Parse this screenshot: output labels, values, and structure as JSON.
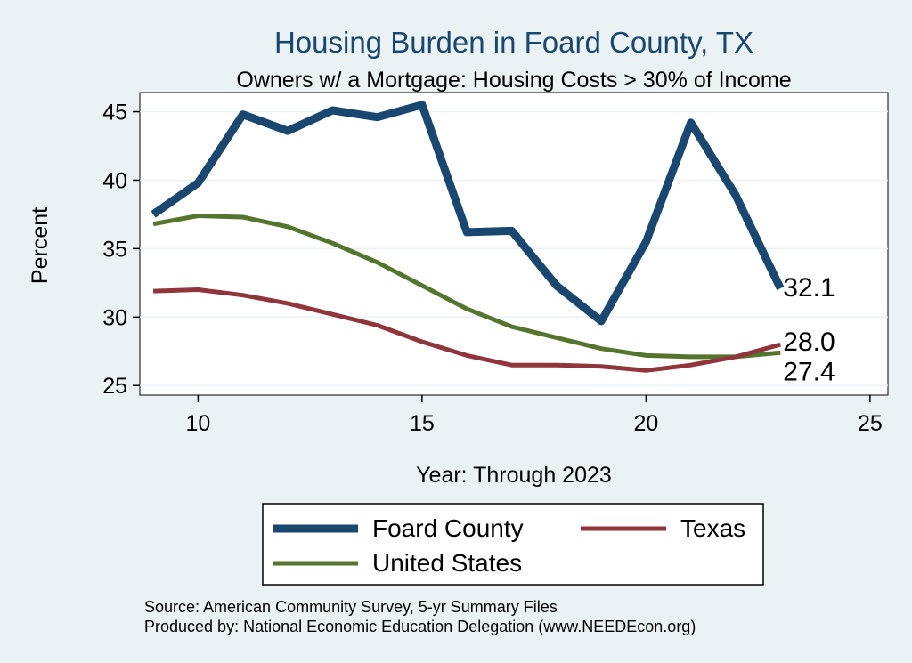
{
  "chart_data": {
    "type": "line",
    "title": "Housing Burden in Foard County, TX",
    "subtitle": "Owners w/ a Mortgage: Housing Costs > 30% of Income",
    "xlabel": "Year: Through 2023",
    "ylabel": "Percent",
    "xlim": [
      8.7,
      25.4
    ],
    "ylim": [
      24.3,
      46.4
    ],
    "xticks": [
      10,
      15,
      20,
      25
    ],
    "yticks": [
      25,
      30,
      35,
      40,
      45
    ],
    "grid": true,
    "series": [
      {
        "name": "Foard County",
        "color": "#1a476f",
        "end_label": "32.1",
        "x": [
          9,
          10,
          11,
          12,
          13,
          14,
          15,
          16,
          17,
          18,
          19,
          20,
          21,
          22,
          23
        ],
        "y": [
          37.5,
          39.8,
          44.8,
          43.6,
          45.1,
          44.6,
          45.5,
          36.2,
          36.3,
          32.3,
          29.7,
          35.5,
          44.2,
          38.9,
          32.1
        ]
      },
      {
        "name": "Texas",
        "color": "#90353b",
        "end_label": "28.0",
        "x": [
          9,
          10,
          11,
          12,
          13,
          14,
          15,
          16,
          17,
          18,
          19,
          20,
          21,
          22,
          23
        ],
        "y": [
          31.9,
          32.0,
          31.6,
          31.0,
          30.2,
          29.4,
          28.2,
          27.2,
          26.5,
          26.5,
          26.4,
          26.1,
          26.5,
          27.1,
          28.0
        ]
      },
      {
        "name": "United States",
        "color": "#55752f",
        "end_label": "27.4",
        "x": [
          9,
          10,
          11,
          12,
          13,
          14,
          15,
          16,
          17,
          18,
          19,
          20,
          21,
          22,
          23
        ],
        "y": [
          36.8,
          37.4,
          37.3,
          36.6,
          35.4,
          34.0,
          32.3,
          30.6,
          29.3,
          28.5,
          27.7,
          27.2,
          27.1,
          27.1,
          27.4
        ]
      }
    ],
    "legend": {
      "placement": "bottom",
      "entries": [
        "Foard County",
        "Texas",
        "United States"
      ]
    },
    "source_lines": [
      "Source: American Community Survey, 5-yr Summary Files",
      "Produced by: National Economic Education Delegation (www.NEEDEcon.org)"
    ]
  }
}
